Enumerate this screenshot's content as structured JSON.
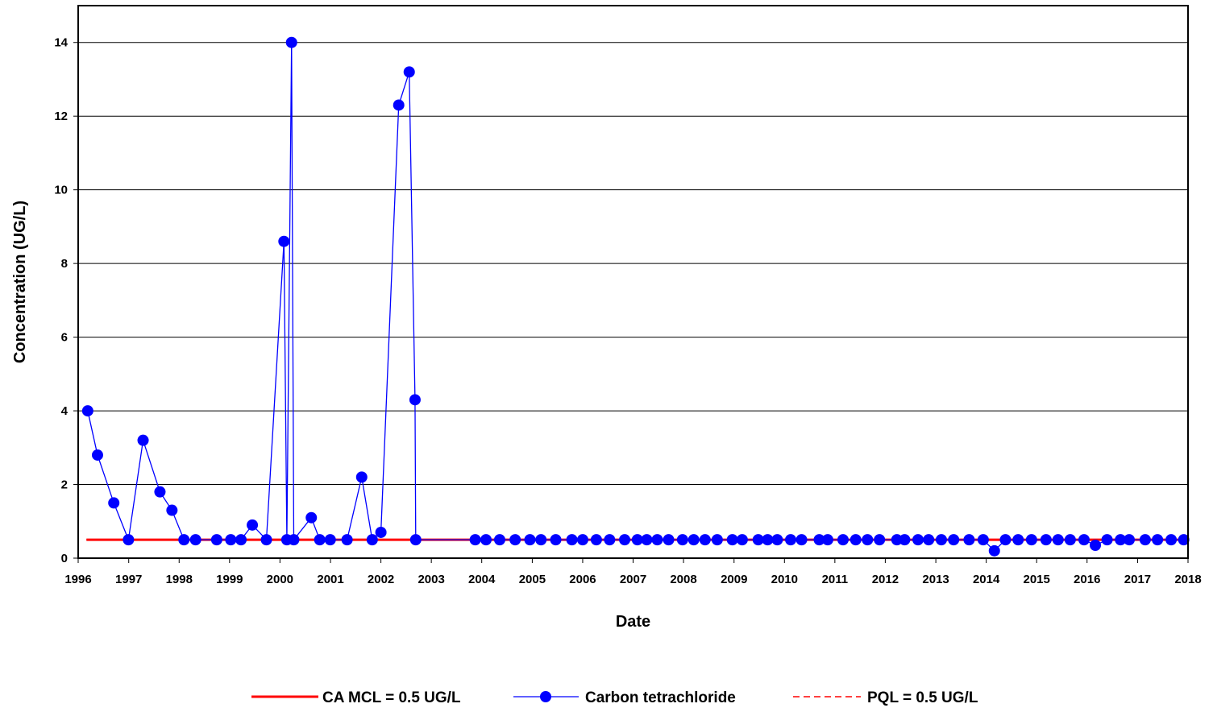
{
  "chart_data": {
    "type": "line",
    "xlabel": "Date",
    "ylabel": "Concentration (UG/L)",
    "xlim": [
      "1996-01-01",
      "2018-01-01"
    ],
    "ylim": [
      0,
      15
    ],
    "y_ticks": [
      0,
      2,
      4,
      6,
      8,
      10,
      12,
      14
    ],
    "x_ticks": [
      "1996",
      "1997",
      "1998",
      "1999",
      "2000",
      "2001",
      "2002",
      "2003",
      "2004",
      "2005",
      "2006",
      "2007",
      "2008",
      "2009",
      "2010",
      "2011",
      "2012",
      "2013",
      "2014",
      "2015",
      "2016",
      "2017",
      "2018"
    ],
    "grid": "horizontal",
    "legend_position": "bottom",
    "series": [
      {
        "name": "CA MCL = 0.5 UG/L",
        "style": "solid-line",
        "color": "#ff0000",
        "x": [
          "1996-03-01",
          "2017-11-15"
        ],
        "y": [
          0.5,
          0.5
        ]
      },
      {
        "name": "Carbon tetrachloride",
        "style": "line-with-markers",
        "color": "#0000ff",
        "x": [
          "1996-03-10",
          "1996-05-20",
          "1996-09-15",
          "1996-12-30",
          "1997-04-15",
          "1997-08-15",
          "1997-11-10",
          "1998-02-05",
          "1998-04-30",
          "1998-09-30",
          "1999-01-10",
          "1999-03-25",
          "1999-06-15",
          "1999-09-25",
          "2000-01-30",
          "2000-02-20",
          "2000-03-25",
          "2000-04-10",
          "2000-08-15",
          "2000-10-15",
          "2000-12-30",
          "2001-05-01",
          "2001-08-15",
          "2001-10-30",
          "2002-01-01",
          "2002-05-10",
          "2002-07-25",
          "2002-09-05",
          "2002-09-10",
          "2003-11-15",
          "2004-02-01",
          "2004-05-10",
          "2004-08-30",
          "2004-12-15",
          "2005-03-05",
          "2005-06-20",
          "2005-10-15",
          "2006-01-01",
          "2006-04-10",
          "2006-07-15",
          "2006-11-01",
          "2007-02-01",
          "2007-04-10",
          "2007-06-25",
          "2007-09-15",
          "2007-12-25",
          "2008-03-15",
          "2008-06-05",
          "2008-09-01",
          "2008-12-20",
          "2009-03-01",
          "2009-06-25",
          "2009-09-01",
          "2009-11-10",
          "2010-02-15",
          "2010-05-05",
          "2010-09-10",
          "2010-11-10",
          "2011-03-01",
          "2011-06-01",
          "2011-08-25",
          "2011-11-20",
          "2012-03-25",
          "2012-05-20",
          "2012-08-25",
          "2012-11-10",
          "2013-02-10",
          "2013-05-10",
          "2013-08-30",
          "2013-12-10",
          "2014-03-01",
          "2014-05-20",
          "2014-08-20",
          "2014-11-25",
          "2015-03-10",
          "2015-06-05",
          "2015-09-01",
          "2015-12-10",
          "2016-03-01",
          "2016-05-25",
          "2016-08-30",
          "2016-11-01",
          "2017-02-25",
          "2017-05-25",
          "2017-09-01",
          "2017-12-01"
        ],
        "y": [
          4.0,
          2.8,
          1.5,
          0.5,
          3.2,
          1.8,
          1.3,
          0.5,
          0.5,
          0.5,
          0.5,
          0.5,
          0.9,
          0.5,
          8.6,
          0.5,
          14.0,
          0.5,
          1.1,
          0.5,
          0.5,
          0.5,
          2.2,
          0.5,
          0.7,
          12.3,
          13.2,
          4.3,
          0.5,
          0.5,
          0.5,
          0.5,
          0.5,
          0.5,
          0.5,
          0.5,
          0.5,
          0.5,
          0.5,
          0.5,
          0.5,
          0.5,
          0.5,
          0.5,
          0.5,
          0.5,
          0.5,
          0.5,
          0.5,
          0.5,
          0.5,
          0.5,
          0.5,
          0.5,
          0.5,
          0.5,
          0.5,
          0.5,
          0.5,
          0.5,
          0.5,
          0.5,
          0.5,
          0.5,
          0.5,
          0.5,
          0.5,
          0.5,
          0.5,
          0.5,
          0.2,
          0.5,
          0.5,
          0.5,
          0.5,
          0.5,
          0.5,
          0.5,
          0.35,
          0.5,
          0.5,
          0.5,
          0.5,
          0.5,
          0.5,
          0.5
        ]
      },
      {
        "name": "PQL = 0.5 UG/L",
        "style": "dashed-line",
        "color": "#ff0000",
        "x": [
          "1996-03-01",
          "2017-11-15"
        ],
        "y": [
          0.5,
          0.5
        ]
      }
    ]
  }
}
